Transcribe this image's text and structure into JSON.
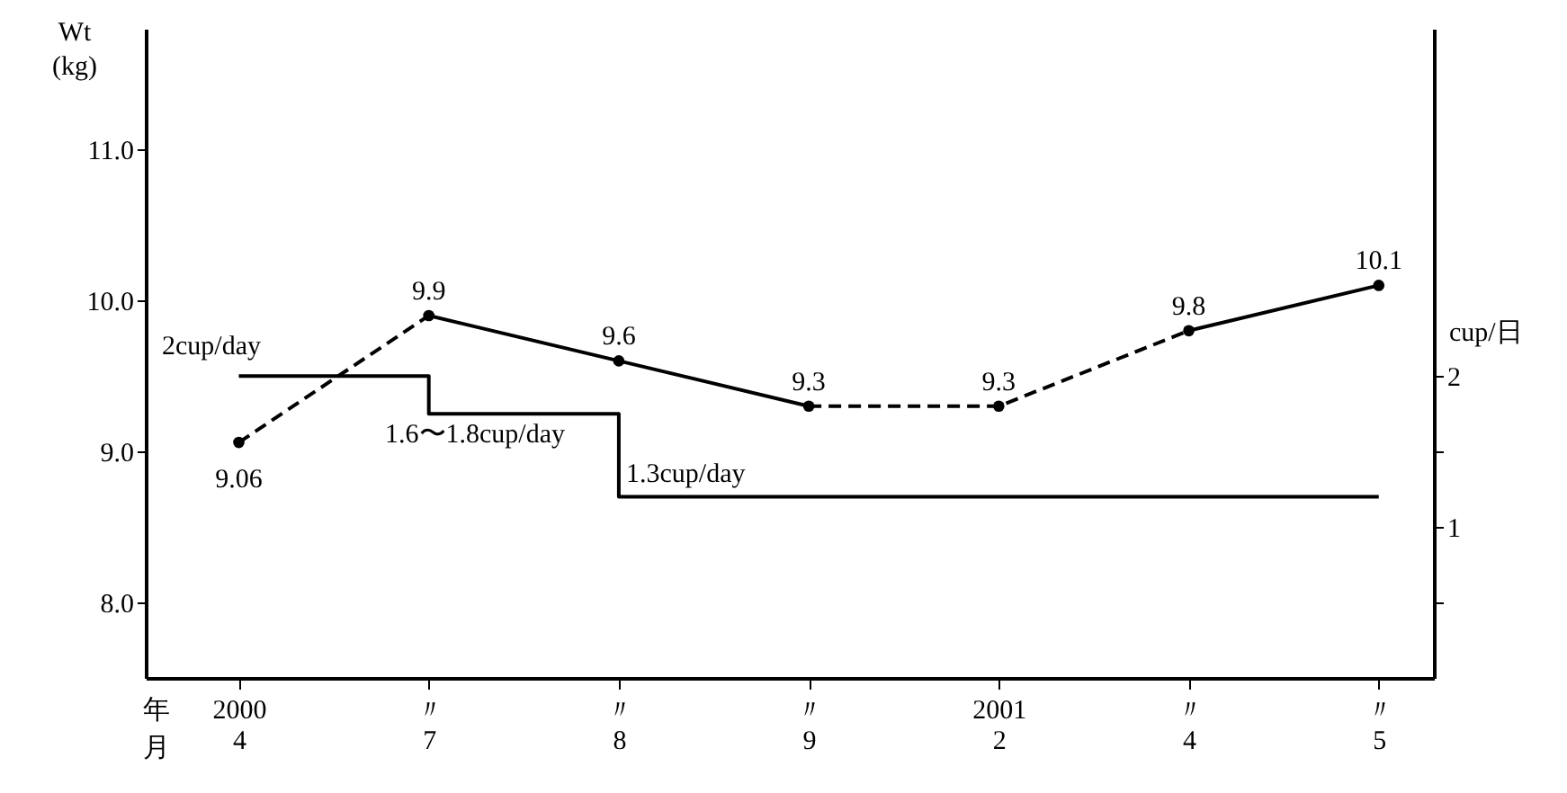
{
  "chart_data": {
    "type": "line",
    "ylabel": "Wt\n(kg)",
    "y2label": "cup/日",
    "xlabel": "年月",
    "categories": [
      "2000\n4",
      "〃\n7",
      "〃\n8",
      "〃\n9",
      "2001\n2",
      "〃\n4",
      "〃\n5"
    ],
    "ylim": [
      7.5,
      11.8
    ],
    "yticks": [
      {
        "value": 8,
        "label": "8.0"
      },
      {
        "value": 9,
        "label": "9.0"
      },
      {
        "value": 10,
        "label": "10.0"
      },
      {
        "value": 11,
        "label": "11.0"
      }
    ],
    "y2lim": [
      0,
      4.3
    ],
    "y2ticks": [
      {
        "value": 0.5,
        "label": null
      },
      1,
      {
        "value": 1.5,
        "label": null
      },
      2
    ],
    "grid": false,
    "series": [
      {
        "type": "scatter",
        "color": "#000000",
        "marker": "circle",
        "data_labels": true,
        "values": [
          9.06,
          9.9,
          9.6,
          9.3,
          9.3,
          9.8,
          10.1
        ]
      },
      {
        "color": "#000000",
        "line_style": "dashed",
        "values": [
          9.06,
          9.9,
          null,
          null,
          null,
          null,
          null
        ]
      },
      {
        "color": "#000000",
        "line_style": "solid",
        "values": [
          null,
          9.9,
          9.6,
          9.3,
          null,
          null,
          null
        ]
      },
      {
        "color": "#000000",
        "line_style": "dashed",
        "values": [
          null,
          null,
          null,
          9.3,
          9.3,
          9.8,
          null
        ]
      },
      {
        "color": "#000000",
        "line_style": "solid",
        "values": [
          null,
          null,
          null,
          null,
          null,
          9.8,
          10.1
        ]
      },
      {
        "type": "step",
        "axis": "y2",
        "color": "#000000",
        "line_style": "solid",
        "values": [
          2.0,
          1.75,
          1.2,
          1.2,
          1.2,
          1.2,
          1.2
        ]
      }
    ],
    "annotations": [
      "2cup/day",
      "1.6〜1.8cup/day",
      "1.3cup/day"
    ]
  }
}
